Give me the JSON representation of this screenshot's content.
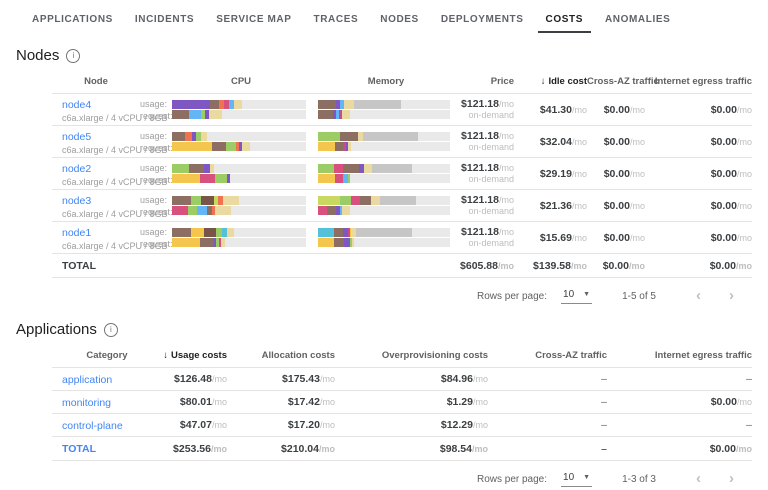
{
  "unit": "/mo",
  "tabs": [
    {
      "label": "APPLICATIONS",
      "active": false
    },
    {
      "label": "INCIDENTS",
      "active": false
    },
    {
      "label": "SERVICE MAP",
      "active": false
    },
    {
      "label": "TRACES",
      "active": false
    },
    {
      "label": "NODES",
      "active": false
    },
    {
      "label": "DEPLOYMENTS",
      "active": false
    },
    {
      "label": "COSTS",
      "active": true
    },
    {
      "label": "ANOMALIES",
      "active": false
    }
  ],
  "palette": {
    "purple": "#7E57C2",
    "brown": "#8D6E63",
    "darkbrown": "#795548",
    "orange": "#EF7350",
    "pink": "#D8507E",
    "magenta": "#C34D8F",
    "blue": "#64B5F6",
    "cyan": "#55C1D8",
    "green": "#9CCC65",
    "lime": "#C8D861",
    "yellow": "#F4C64D",
    "tan": "#EBD9A2",
    "used_other": "#C6C6C6",
    "track": "#E9E9E9"
  },
  "nodes_section": {
    "title": "Nodes",
    "columns": [
      "Node",
      "CPU",
      "Memory",
      "Price",
      "Idle cost",
      "Cross-AZ traffic",
      "Internet egress traffic"
    ],
    "sorted_column": "Idle cost",
    "row_labels": {
      "usage": "usage:",
      "request": "request:"
    },
    "rows": [
      {
        "name": "node4",
        "spec": "c6a.xlarge / 4 vCPU / 8GB",
        "cpu_usage": [
          [
            "purple",
            28
          ],
          [
            "brown",
            7
          ],
          [
            "orange",
            4
          ],
          [
            "pink",
            3.5
          ],
          [
            "blue",
            3.5
          ],
          [
            "tan",
            6
          ]
        ],
        "cpu_request": [
          [
            "brown",
            13
          ],
          [
            "blue",
            9
          ],
          [
            "green",
            3
          ],
          [
            "purple",
            3
          ],
          [
            "tan",
            9
          ]
        ],
        "mem_usage": [
          [
            "brown",
            14
          ],
          [
            "purple",
            3
          ],
          [
            "blue",
            3
          ],
          [
            "tan",
            7
          ],
          [
            "used_other",
            36
          ]
        ],
        "mem_request": [
          [
            "brown",
            11
          ],
          [
            "purple",
            3
          ],
          [
            "blue",
            2
          ],
          [
            "magenta",
            2
          ],
          [
            "tan",
            6
          ]
        ],
        "price": "$121.18",
        "billing": "on-demand",
        "idle_cost": "$41.30",
        "cross_az": "$0.00",
        "egress": "$0.00"
      },
      {
        "name": "node5",
        "spec": "c6a.xlarge / 4 vCPU / 8GB",
        "cpu_usage": [
          [
            "brown",
            10
          ],
          [
            "orange",
            5
          ],
          [
            "purple",
            3
          ],
          [
            "green",
            4
          ],
          [
            "tan",
            4
          ]
        ],
        "cpu_request": [
          [
            "yellow",
            30
          ],
          [
            "brown",
            10
          ],
          [
            "green",
            8
          ],
          [
            "orange",
            2
          ],
          [
            "purple",
            2
          ],
          [
            "tan",
            6
          ]
        ],
        "mem_usage": [
          [
            "green",
            17
          ],
          [
            "brown",
            13
          ],
          [
            "tan",
            4
          ],
          [
            "used_other",
            42
          ]
        ],
        "mem_request": [
          [
            "yellow",
            13
          ],
          [
            "brown",
            6
          ],
          [
            "magenta",
            2
          ],
          [
            "purple",
            2
          ],
          [
            "tan",
            2
          ]
        ],
        "price": "$121.18",
        "billing": "on-demand",
        "idle_cost": "$32.04",
        "cross_az": "$0.00",
        "egress": "$0.00"
      },
      {
        "name": "node2",
        "spec": "c6a.xlarge / 4 vCPU / 8GB",
        "cpu_usage": [
          [
            "green",
            13
          ],
          [
            "brown",
            11
          ],
          [
            "purple",
            4
          ],
          [
            "tan",
            3
          ]
        ],
        "cpu_request": [
          [
            "yellow",
            21
          ],
          [
            "pink",
            11
          ],
          [
            "green",
            9
          ],
          [
            "purple",
            2
          ]
        ],
        "mem_usage": [
          [
            "green",
            12
          ],
          [
            "pink",
            7
          ],
          [
            "brown",
            12
          ],
          [
            "purple",
            4
          ],
          [
            "tan",
            6
          ],
          [
            "used_other",
            30
          ]
        ],
        "mem_request": [
          [
            "yellow",
            13
          ],
          [
            "pink",
            6
          ],
          [
            "blue",
            4
          ],
          [
            "green",
            1.5
          ]
        ],
        "price": "$121.18",
        "billing": "on-demand",
        "idle_cost": "$29.19",
        "cross_az": "$0.00",
        "egress": "$0.00"
      },
      {
        "name": "node3",
        "spec": "c6a.xlarge / 4 vCPU / 8GB",
        "cpu_usage": [
          [
            "brown",
            14
          ],
          [
            "green",
            8
          ],
          [
            "darkbrown",
            9
          ],
          [
            "lime",
            3
          ],
          [
            "orange",
            4
          ],
          [
            "tan",
            12
          ]
        ],
        "cpu_request": [
          [
            "pink",
            12
          ],
          [
            "green",
            7
          ],
          [
            "blue",
            7
          ],
          [
            "brown",
            4
          ],
          [
            "orange",
            2
          ],
          [
            "tan",
            12
          ]
        ],
        "mem_usage": [
          [
            "lime",
            17
          ],
          [
            "green",
            8
          ],
          [
            "pink",
            7
          ],
          [
            "brown",
            8
          ],
          [
            "tan",
            7
          ],
          [
            "used_other",
            27
          ]
        ],
        "mem_request": [
          [
            "pink",
            7
          ],
          [
            "brown",
            7
          ],
          [
            "purple",
            3
          ],
          [
            "blue",
            1.5
          ],
          [
            "tan",
            6
          ]
        ],
        "price": "$121.18",
        "billing": "on-demand",
        "idle_cost": "$21.36",
        "cross_az": "$0.00",
        "egress": "$0.00"
      },
      {
        "name": "node1",
        "spec": "c6a.xlarge / 4 vCPU / 8GB",
        "cpu_usage": [
          [
            "brown",
            14
          ],
          [
            "yellow",
            10
          ],
          [
            "darkbrown",
            9
          ],
          [
            "green",
            4
          ],
          [
            "cyan",
            4
          ],
          [
            "tan",
            5
          ]
        ],
        "cpu_request": [
          [
            "yellow",
            21
          ],
          [
            "brown",
            10
          ],
          [
            "purple",
            2
          ],
          [
            "green",
            2
          ],
          [
            "pink",
            1.5
          ],
          [
            "tan",
            3
          ]
        ],
        "mem_usage": [
          [
            "cyan",
            12
          ],
          [
            "brown",
            7
          ],
          [
            "purple",
            4
          ],
          [
            "magenta",
            1
          ],
          [
            "yellow",
            1
          ],
          [
            "tan",
            4
          ],
          [
            "used_other",
            42
          ]
        ],
        "mem_request": [
          [
            "yellow",
            12
          ],
          [
            "brown",
            8
          ],
          [
            "purple",
            4
          ],
          [
            "green",
            1.5
          ],
          [
            "tan",
            1.5
          ]
        ],
        "price": "$121.18",
        "billing": "on-demand",
        "idle_cost": "$15.69",
        "cross_az": "$0.00",
        "egress": "$0.00"
      }
    ],
    "total": {
      "label": "TOTAL",
      "price": "$605.88",
      "idle_cost": "$139.58",
      "cross_az": "$0.00",
      "egress": "$0.00"
    },
    "pagination": {
      "rows_per_page_label": "Rows per page:",
      "rows_per_page": "10",
      "range": "1-5 of 5"
    }
  },
  "applications_section": {
    "title": "Applications",
    "columns": [
      "Category",
      "Usage costs",
      "Allocation costs",
      "Overprovisioning costs",
      "Cross-AZ traffic",
      "Internet egress traffic"
    ],
    "sorted_column": "Usage costs",
    "rows": [
      {
        "category": "application",
        "usage": "$126.48",
        "allocation": "$175.43",
        "overprovisioning": "$84.96",
        "cross_az": "–",
        "egress": "–"
      },
      {
        "category": "monitoring",
        "usage": "$80.01",
        "allocation": "$17.42",
        "overprovisioning": "$1.29",
        "cross_az": "–",
        "egress": "$0.00"
      },
      {
        "category": "control-plane",
        "usage": "$47.07",
        "allocation": "$17.20",
        "overprovisioning": "$12.29",
        "cross_az": "–",
        "egress": "–"
      }
    ],
    "total": {
      "label": "TOTAL",
      "usage": "$253.56",
      "allocation": "$210.04",
      "overprovisioning": "$98.54",
      "cross_az": "–",
      "egress": "$0.00"
    },
    "pagination": {
      "rows_per_page_label": "Rows per page:",
      "rows_per_page": "10",
      "range": "1-3 of 3"
    }
  }
}
